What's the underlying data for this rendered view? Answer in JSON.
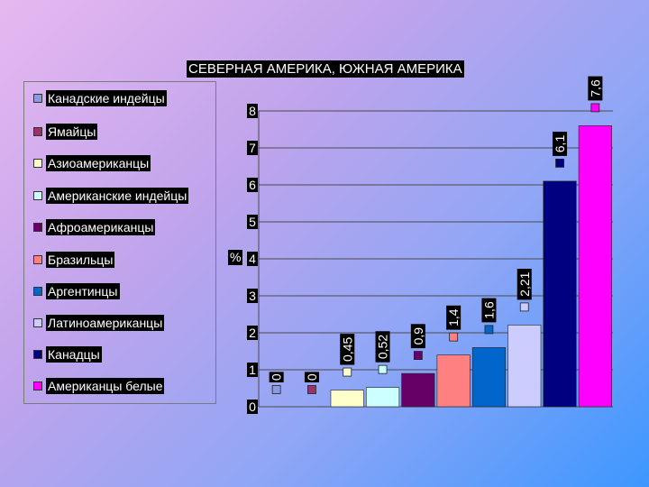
{
  "chart_data": {
    "type": "bar",
    "title": "СЕВЕРНАЯ АМЕРИКА, ЮЖНАЯ АМЕРИКА",
    "xlabel": "",
    "ylabel": "%",
    "ylim": [
      0,
      8
    ],
    "yticks": [
      "0",
      "1",
      "2",
      "3",
      "4",
      "5",
      "6",
      "7",
      "8"
    ],
    "grid": true,
    "legend_position": "left",
    "categories": [
      "Канадские индейцы",
      "Ямайцы",
      "Азиоамериканцы",
      "Американские индейцы",
      "Афроамериканцы",
      "Бразильцы",
      "Аргентинцы",
      "Латиноамериканцы",
      "Канадцы",
      "Американцы белые"
    ],
    "values": [
      0,
      0,
      0.45,
      0.52,
      0.9,
      1.4,
      1.6,
      2.21,
      6.1,
      7.6
    ],
    "data_labels": [
      "0",
      "0",
      "0,45",
      "0,52",
      "0,9",
      "1,4",
      "1,6",
      "2,21",
      "6,1",
      "7,6"
    ],
    "colors": [
      "#8e9ae0",
      "#993366",
      "#ffffcc",
      "#ccffff",
      "#660066",
      "#ff8080",
      "#0066cc",
      "#ccccff",
      "#000080",
      "#ff00ff"
    ]
  }
}
